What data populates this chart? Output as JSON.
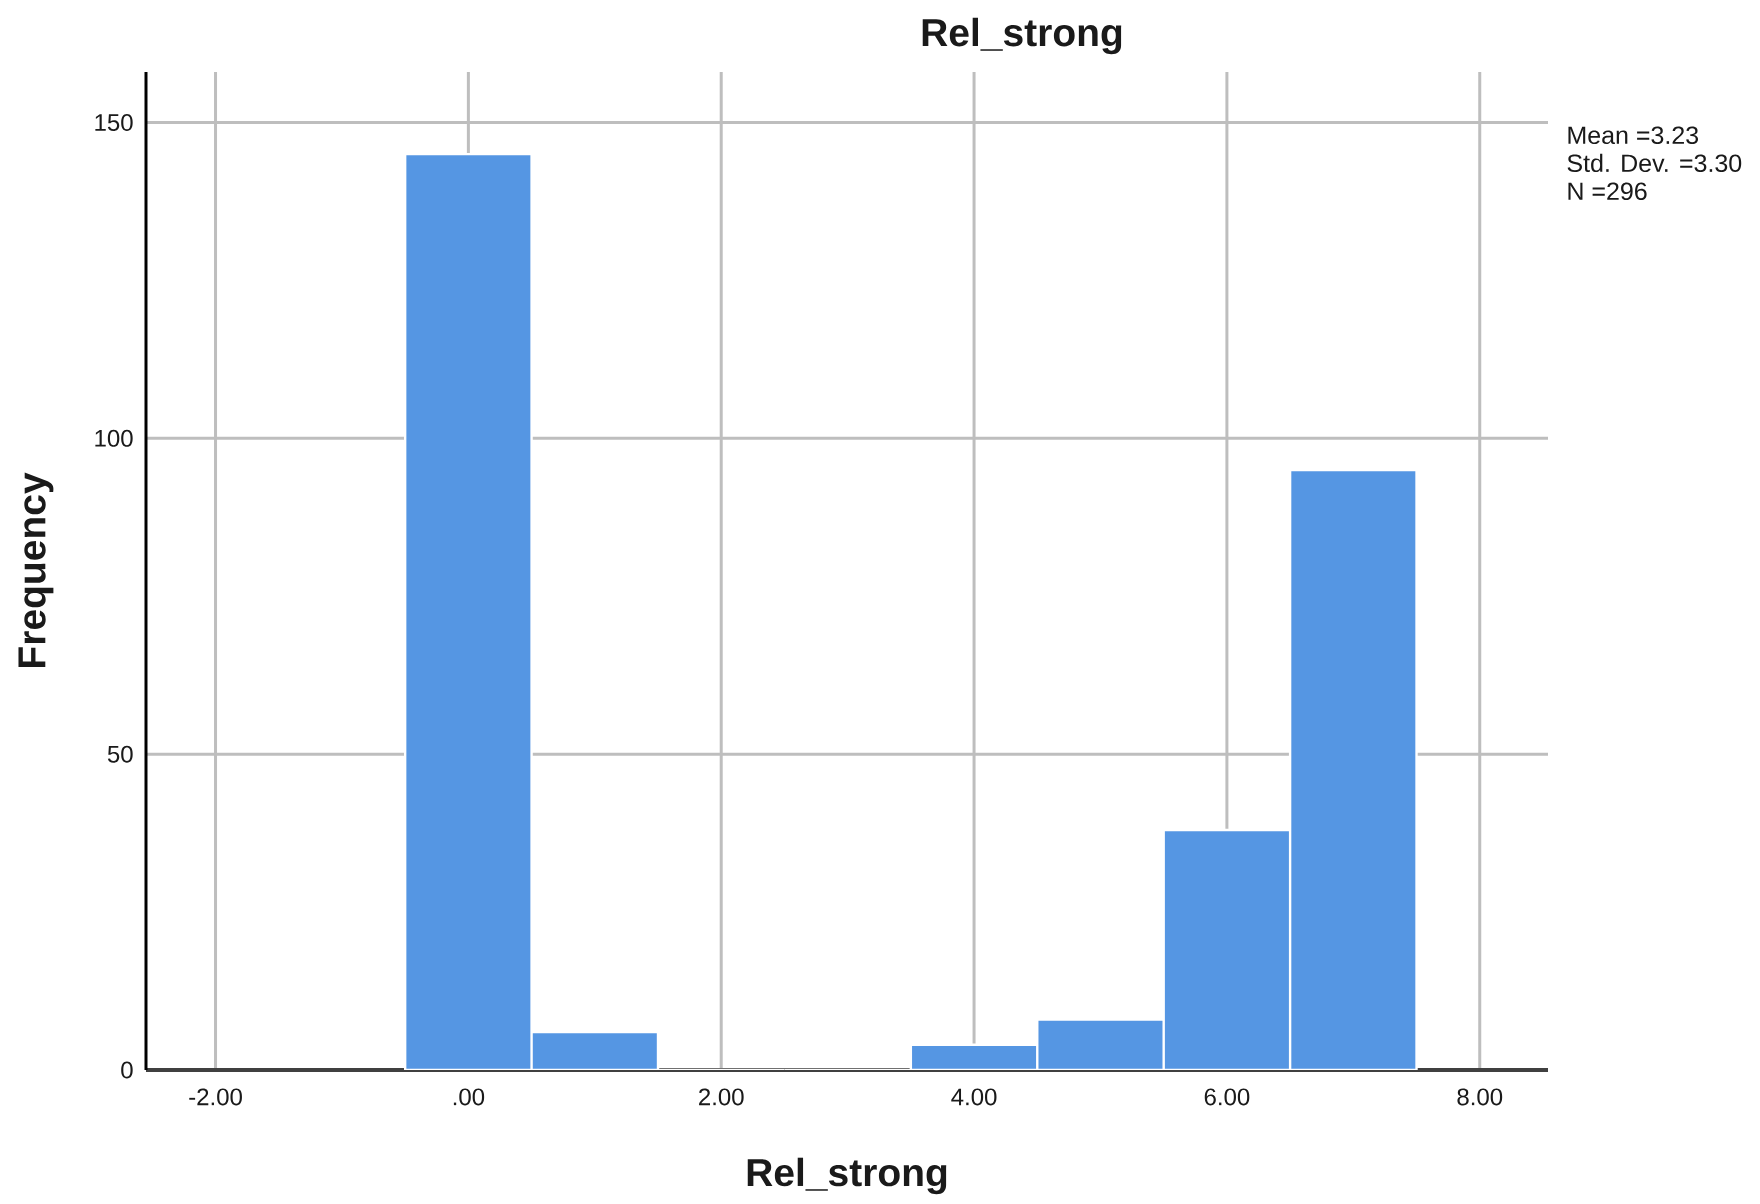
{
  "chart_data": {
    "type": "histogram",
    "title": "Rel_strong",
    "xlabel": "Rel_strong",
    "ylabel": "Frequency",
    "bins": [
      -0.5,
      0.5,
      1.5,
      2.5,
      3.5,
      4.5,
      5.5,
      6.5,
      7.5
    ],
    "values": [
      145,
      6,
      0,
      0,
      4,
      8,
      38,
      95
    ],
    "color": "#5596e3",
    "xlim": [
      -2.55,
      8.54
    ],
    "ylim": [
      0,
      158
    ],
    "xticks": [
      {
        "value": -2,
        "label": "-2.00"
      },
      {
        "value": 0,
        "label": ".00"
      },
      {
        "value": 2,
        "label": "2.00"
      },
      {
        "value": 4,
        "label": "4.00"
      },
      {
        "value": 6,
        "label": "6.00"
      },
      {
        "value": 8,
        "label": "8.00"
      }
    ],
    "yticks": [
      0,
      50,
      100,
      150
    ],
    "grid": true,
    "annotations": [
      "Mean =3.23",
      "Std. Dev. =3.30",
      "N =296"
    ]
  }
}
